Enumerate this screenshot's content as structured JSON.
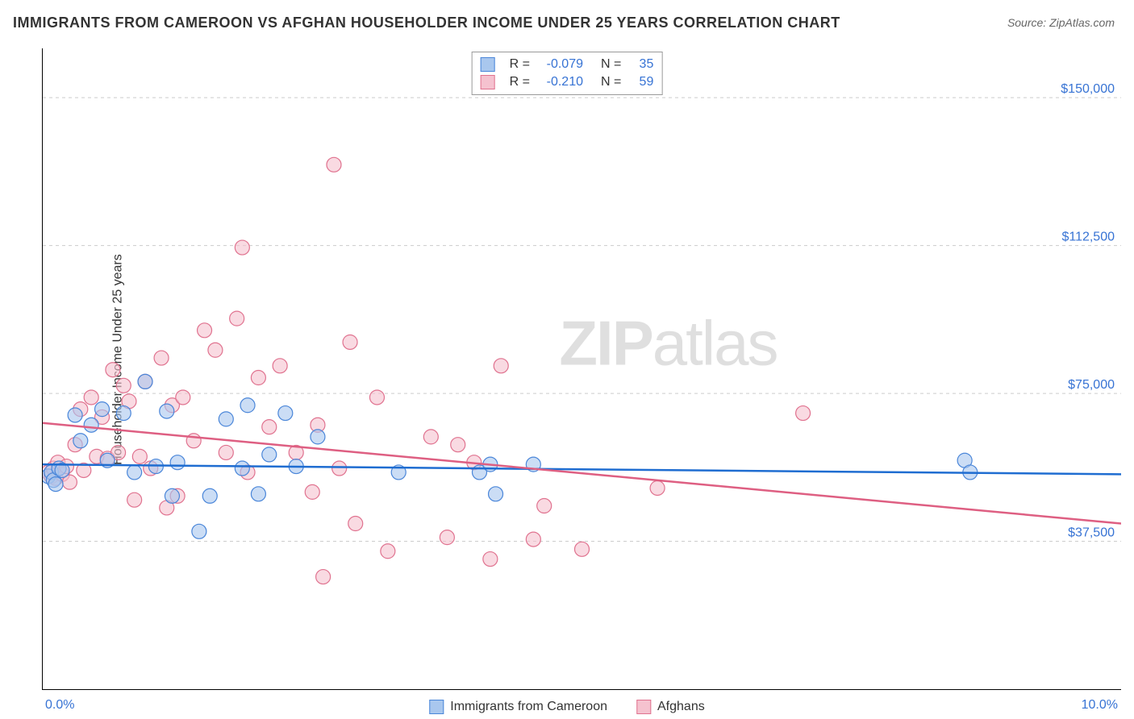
{
  "title": "IMMIGRANTS FROM CAMEROON VS AFGHAN HOUSEHOLDER INCOME UNDER 25 YEARS CORRELATION CHART",
  "source": "Source: ZipAtlas.com",
  "watermark_bold": "ZIP",
  "watermark_light": "atlas",
  "y_axis_label": "Householder Income Under 25 years",
  "x_min_label": "0.0%",
  "x_max_label": "10.0%",
  "chart": {
    "type": "scatter",
    "background_color": "#ffffff",
    "grid_color": "#cccccc",
    "axis_color": "#000000",
    "xlim": [
      0,
      10
    ],
    "ylim": [
      0,
      162500
    ],
    "y_ticks": [
      37500,
      75000,
      112500,
      150000
    ],
    "y_tick_labels": [
      "$37,500",
      "$75,000",
      "$112,500",
      "$150,000"
    ],
    "x_ticks": [
      1,
      2,
      3,
      4,
      5,
      6,
      7,
      8,
      9
    ],
    "marker_radius": 9,
    "marker_stroke_width": 1.2,
    "marker_fill_opacity": 0.25,
    "series": [
      {
        "name": "Immigrants from Cameroon",
        "color_fill": "#a9c7ee",
        "color_stroke": "#4a86d9",
        "line_color": "#1f6dd1",
        "R": "-0.079",
        "N": "35",
        "trend": {
          "y_at_xmin": 57000,
          "y_at_xmax": 54500
        },
        "points": [
          [
            0.05,
            54000
          ],
          [
            0.08,
            55000
          ],
          [
            0.1,
            53000
          ],
          [
            0.12,
            52000
          ],
          [
            0.15,
            56000
          ],
          [
            0.18,
            55500
          ],
          [
            0.3,
            69500
          ],
          [
            0.35,
            63000
          ],
          [
            0.45,
            67000
          ],
          [
            0.55,
            71000
          ],
          [
            0.6,
            58000
          ],
          [
            0.75,
            70000
          ],
          [
            0.85,
            55000
          ],
          [
            0.95,
            78000
          ],
          [
            1.05,
            56500
          ],
          [
            1.15,
            70500
          ],
          [
            1.2,
            49000
          ],
          [
            1.25,
            57500
          ],
          [
            1.45,
            40000
          ],
          [
            1.55,
            49000
          ],
          [
            1.7,
            68500
          ],
          [
            1.85,
            56000
          ],
          [
            1.9,
            72000
          ],
          [
            2.0,
            49500
          ],
          [
            2.1,
            59500
          ],
          [
            2.25,
            70000
          ],
          [
            2.35,
            56500
          ],
          [
            2.55,
            64000
          ],
          [
            3.3,
            55000
          ],
          [
            4.05,
            55000
          ],
          [
            4.15,
            57000
          ],
          [
            4.2,
            49500
          ],
          [
            4.55,
            57000
          ],
          [
            8.55,
            58000
          ],
          [
            8.6,
            55000
          ]
        ]
      },
      {
        "name": "Afghans",
        "color_fill": "#f5c2cf",
        "color_stroke": "#e0728f",
        "line_color": "#de5f82",
        "R": "-0.210",
        "N": "59",
        "trend": {
          "y_at_xmin": 67500,
          "y_at_xmax": 42000
        },
        "points": [
          [
            0.05,
            55000
          ],
          [
            0.08,
            54000
          ],
          [
            0.1,
            56000
          ],
          [
            0.12,
            53500
          ],
          [
            0.14,
            57500
          ],
          [
            0.18,
            54500
          ],
          [
            0.22,
            56500
          ],
          [
            0.25,
            52500
          ],
          [
            0.3,
            62000
          ],
          [
            0.35,
            71000
          ],
          [
            0.38,
            55500
          ],
          [
            0.45,
            74000
          ],
          [
            0.5,
            59000
          ],
          [
            0.55,
            69000
          ],
          [
            0.6,
            58500
          ],
          [
            0.65,
            81000
          ],
          [
            0.7,
            60000
          ],
          [
            0.75,
            77000
          ],
          [
            0.8,
            73000
          ],
          [
            0.85,
            48000
          ],
          [
            0.9,
            59000
          ],
          [
            0.95,
            78000
          ],
          [
            1.0,
            56000
          ],
          [
            1.1,
            84000
          ],
          [
            1.15,
            46000
          ],
          [
            1.2,
            72000
          ],
          [
            1.25,
            49000
          ],
          [
            1.3,
            74000
          ],
          [
            1.4,
            63000
          ],
          [
            1.5,
            91000
          ],
          [
            1.6,
            86000
          ],
          [
            1.7,
            60000
          ],
          [
            1.8,
            94000
          ],
          [
            1.85,
            112000
          ],
          [
            1.9,
            55000
          ],
          [
            2.0,
            79000
          ],
          [
            2.1,
            66500
          ],
          [
            2.2,
            82000
          ],
          [
            2.35,
            60000
          ],
          [
            2.5,
            50000
          ],
          [
            2.55,
            67000
          ],
          [
            2.6,
            28500
          ],
          [
            2.7,
            133000
          ],
          [
            2.75,
            56000
          ],
          [
            2.85,
            88000
          ],
          [
            2.9,
            42000
          ],
          [
            3.1,
            74000
          ],
          [
            3.2,
            35000
          ],
          [
            3.6,
            64000
          ],
          [
            3.75,
            38500
          ],
          [
            3.85,
            62000
          ],
          [
            4.0,
            57500
          ],
          [
            4.15,
            33000
          ],
          [
            4.25,
            82000
          ],
          [
            4.55,
            38000
          ],
          [
            4.65,
            46500
          ],
          [
            5.0,
            35500
          ],
          [
            5.7,
            51000
          ],
          [
            7.05,
            70000
          ]
        ]
      }
    ]
  },
  "bottom_legend": [
    {
      "label": "Immigrants from Cameroon",
      "fill": "#a9c7ee",
      "stroke": "#4a86d9"
    },
    {
      "label": "Afghans",
      "fill": "#f5c2cf",
      "stroke": "#e0728f"
    }
  ]
}
